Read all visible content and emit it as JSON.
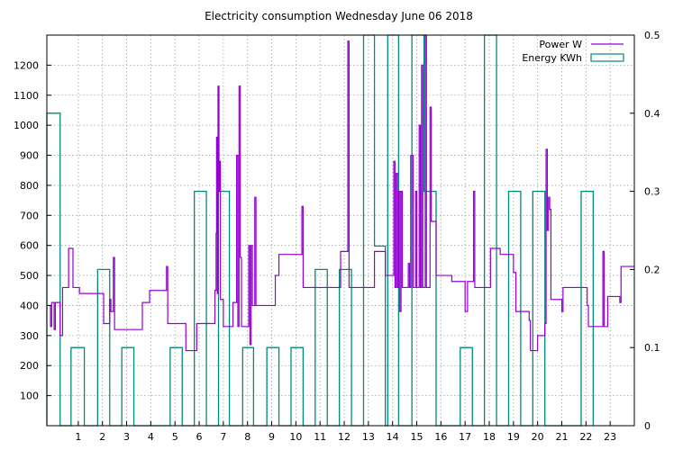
{
  "chart_data": {
    "type": "line",
    "title": "Electricity consumption Wednesday June 06 2018",
    "xlabel": "",
    "ylabel": "",
    "xlim": [
      -0.3,
      24.0
    ],
    "ylim": [
      0,
      1300
    ],
    "y2lim": [
      0,
      0.5
    ],
    "x_ticks": [
      1,
      2,
      3,
      4,
      5,
      6,
      7,
      8,
      9,
      10,
      11,
      12,
      13,
      14,
      15,
      16,
      17,
      18,
      19,
      20,
      21,
      22,
      23
    ],
    "y_ticks": [
      100,
      200,
      300,
      400,
      500,
      600,
      700,
      800,
      900,
      1000,
      1100,
      1200
    ],
    "y2_ticks": [
      0,
      0.1,
      0.2,
      0.3,
      0.4,
      0.5
    ],
    "grid": true,
    "legend_position": "top-right",
    "series": [
      {
        "name": "Power W",
        "color": "#9400d3",
        "axis": "y1",
        "style": "steps",
        "points": [
          [
            -0.3,
            400
          ],
          [
            -0.15,
            330
          ],
          [
            -0.1,
            410
          ],
          [
            0.0,
            320
          ],
          [
            0.05,
            410
          ],
          [
            0.2,
            410
          ],
          [
            0.25,
            300
          ],
          [
            0.35,
            460
          ],
          [
            0.55,
            460
          ],
          [
            0.6,
            590
          ],
          [
            0.75,
            590
          ],
          [
            0.78,
            460
          ],
          [
            1.0,
            460
          ],
          [
            1.05,
            440
          ],
          [
            1.8,
            440
          ],
          [
            1.85,
            440
          ],
          [
            2.0,
            440
          ],
          [
            2.05,
            340
          ],
          [
            2.25,
            340
          ],
          [
            2.3,
            420
          ],
          [
            2.35,
            380
          ],
          [
            2.45,
            560
          ],
          [
            2.5,
            320
          ],
          [
            3.6,
            320
          ],
          [
            3.65,
            410
          ],
          [
            3.9,
            410
          ],
          [
            3.95,
            450
          ],
          [
            4.6,
            450
          ],
          [
            4.65,
            530
          ],
          [
            4.7,
            340
          ],
          [
            5.4,
            340
          ],
          [
            5.45,
            250
          ],
          [
            5.85,
            250
          ],
          [
            5.9,
            340
          ],
          [
            6.35,
            340
          ],
          [
            6.6,
            340
          ],
          [
            6.65,
            450
          ],
          [
            6.7,
            640
          ],
          [
            6.72,
            960
          ],
          [
            6.75,
            440
          ],
          [
            6.78,
            1130
          ],
          [
            6.82,
            780
          ],
          [
            6.85,
            880
          ],
          [
            6.88,
            420
          ],
          [
            6.95,
            420
          ],
          [
            7.0,
            330
          ],
          [
            7.35,
            330
          ],
          [
            7.4,
            410
          ],
          [
            7.5,
            410
          ],
          [
            7.55,
            900
          ],
          [
            7.6,
            330
          ],
          [
            7.65,
            1130
          ],
          [
            7.7,
            560
          ],
          [
            7.75,
            330
          ],
          [
            8.0,
            330
          ],
          [
            8.05,
            600
          ],
          [
            8.1,
            270
          ],
          [
            8.15,
            600
          ],
          [
            8.2,
            400
          ],
          [
            8.3,
            760
          ],
          [
            8.35,
            400
          ],
          [
            9.1,
            400
          ],
          [
            9.15,
            500
          ],
          [
            9.3,
            570
          ],
          [
            10.2,
            570
          ],
          [
            10.25,
            730
          ],
          [
            10.3,
            460
          ],
          [
            11.8,
            460
          ],
          [
            11.85,
            580
          ],
          [
            12.1,
            580
          ],
          [
            12.15,
            1280
          ],
          [
            12.2,
            460
          ],
          [
            13.2,
            460
          ],
          [
            13.25,
            580
          ],
          [
            13.65,
            580
          ],
          [
            13.7,
            500
          ],
          [
            14.0,
            500
          ],
          [
            14.05,
            880
          ],
          [
            14.1,
            460
          ],
          [
            14.15,
            840
          ],
          [
            14.2,
            460
          ],
          [
            14.25,
            780
          ],
          [
            14.3,
            380
          ],
          [
            14.35,
            780
          ],
          [
            14.4,
            460
          ],
          [
            14.6,
            460
          ],
          [
            14.65,
            540
          ],
          [
            14.7,
            460
          ],
          [
            14.75,
            900
          ],
          [
            14.85,
            460
          ],
          [
            14.95,
            780
          ],
          [
            15.0,
            460
          ],
          [
            15.1,
            1000
          ],
          [
            15.15,
            460
          ],
          [
            15.2,
            1200
          ],
          [
            15.25,
            460
          ],
          [
            15.35,
            1300
          ],
          [
            15.4,
            460
          ],
          [
            15.5,
            460
          ],
          [
            15.55,
            1060
          ],
          [
            15.6,
            680
          ],
          [
            15.75,
            680
          ],
          [
            15.8,
            500
          ],
          [
            16.4,
            500
          ],
          [
            16.45,
            480
          ],
          [
            16.95,
            480
          ],
          [
            17.0,
            380
          ],
          [
            17.1,
            480
          ],
          [
            17.3,
            480
          ],
          [
            17.35,
            780
          ],
          [
            17.4,
            460
          ],
          [
            17.55,
            460
          ],
          [
            18.0,
            460
          ],
          [
            18.05,
            590
          ],
          [
            18.4,
            590
          ],
          [
            18.45,
            570
          ],
          [
            18.95,
            570
          ],
          [
            19.0,
            510
          ],
          [
            19.1,
            380
          ],
          [
            19.6,
            380
          ],
          [
            19.65,
            350
          ],
          [
            19.7,
            250
          ],
          [
            19.95,
            250
          ],
          [
            20.0,
            300
          ],
          [
            20.25,
            300
          ],
          [
            20.3,
            340
          ],
          [
            20.35,
            920
          ],
          [
            20.4,
            650
          ],
          [
            20.45,
            760
          ],
          [
            20.5,
            720
          ],
          [
            20.55,
            420
          ],
          [
            20.95,
            420
          ],
          [
            21.0,
            380
          ],
          [
            21.05,
            460
          ],
          [
            22.0,
            460
          ],
          [
            22.05,
            400
          ],
          [
            22.1,
            330
          ],
          [
            22.65,
            330
          ],
          [
            22.7,
            580
          ],
          [
            22.75,
            330
          ],
          [
            22.85,
            330
          ],
          [
            22.9,
            430
          ],
          [
            23.35,
            430
          ],
          [
            23.4,
            410
          ],
          [
            23.45,
            530
          ],
          [
            24.0,
            530
          ]
        ]
      },
      {
        "name": "Energy KWh",
        "color": "#008b7a",
        "axis": "y2",
        "style": "bars",
        "bars": [
          [
            -0.3,
            0.4
          ],
          [
            0.25,
            0
          ],
          [
            0.7,
            0.1
          ],
          [
            1.25,
            0
          ],
          [
            1.8,
            0.2
          ],
          [
            2.3,
            0
          ],
          [
            2.8,
            0.1
          ],
          [
            3.3,
            0
          ],
          [
            4.8,
            0.1
          ],
          [
            5.3,
            0
          ],
          [
            5.8,
            0.3
          ],
          [
            6.3,
            0
          ],
          [
            6.8,
            0.3
          ],
          [
            7.25,
            0
          ],
          [
            7.8,
            0.1
          ],
          [
            8.25,
            0
          ],
          [
            8.8,
            0.1
          ],
          [
            9.3,
            0
          ],
          [
            9.8,
            0.1
          ],
          [
            10.3,
            0
          ],
          [
            10.8,
            0.2
          ],
          [
            11.3,
            0
          ],
          [
            11.8,
            0.2
          ],
          [
            12.3,
            0
          ],
          [
            12.8,
            0.5
          ],
          [
            13.25,
            0.23
          ],
          [
            13.7,
            0
          ],
          [
            13.8,
            0.5
          ],
          [
            14.25,
            0
          ],
          [
            14.8,
            0.5
          ],
          [
            15.3,
            0.3
          ],
          [
            15.8,
            0
          ],
          [
            16.8,
            0.1
          ],
          [
            17.3,
            0
          ],
          [
            17.8,
            0.5
          ],
          [
            18.3,
            0
          ],
          [
            18.8,
            0.3
          ],
          [
            19.3,
            0
          ],
          [
            19.8,
            0.3
          ],
          [
            20.3,
            0
          ],
          [
            21.8,
            0.3
          ],
          [
            22.3,
            0
          ]
        ]
      }
    ]
  }
}
